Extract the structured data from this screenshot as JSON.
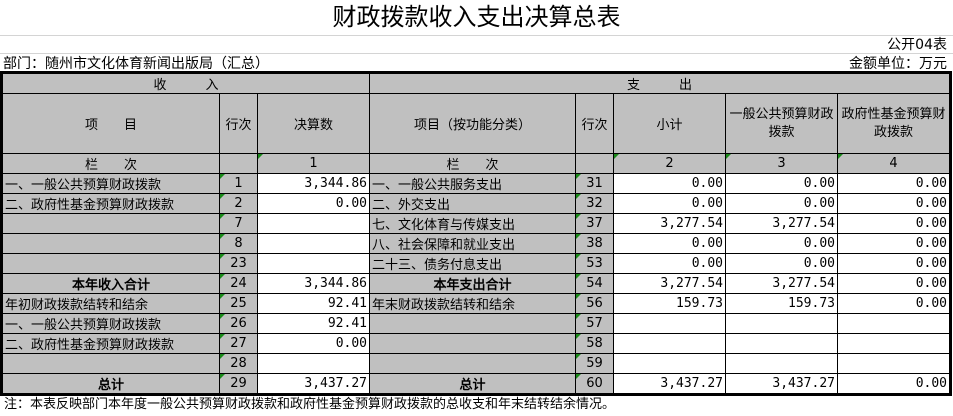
{
  "title": "财政拨款收入支出决算总表",
  "form_no": "公开04表",
  "department": "部门：随州市文化体育新闻出版局（汇总）",
  "unit": "金额单位：万元",
  "header": {
    "income": "收　　　入",
    "expense": "支　　　出",
    "item": "项　　目",
    "row_no": "行次",
    "final_amount": "决算数",
    "item_by_function": "项目（按功能分类）",
    "subtotal": "小计",
    "general_budget": "一般公共预算财政拨款",
    "gov_fund": "政府性基金预算财政拨款",
    "column_label": "栏　　次",
    "col1": "1",
    "col2": "2",
    "col3": "3",
    "col4": "4"
  },
  "rows": [
    {
      "in_item": "一、一般公共预算财政拨款",
      "in_no": "1",
      "in_amt": "3,344.86",
      "ex_item": "一、一般公共服务支出",
      "ex_no": "31",
      "sub": "0.00",
      "gen": "0.00",
      "fund": "0.00"
    },
    {
      "in_item": "二、政府性基金预算财政拨款",
      "in_no": "2",
      "in_amt": "0.00",
      "ex_item": "二、外交支出",
      "ex_no": "32",
      "sub": "0.00",
      "gen": "0.00",
      "fund": "0.00"
    },
    {
      "in_item": "",
      "in_no": "7",
      "in_amt": "",
      "ex_item": "七、文化体育与传媒支出",
      "ex_no": "37",
      "sub": "3,277.54",
      "gen": "3,277.54",
      "fund": "0.00"
    },
    {
      "in_item": "",
      "in_no": "8",
      "in_amt": "",
      "ex_item": "八、社会保障和就业支出",
      "ex_no": "38",
      "sub": "0.00",
      "gen": "0.00",
      "fund": "0.00"
    },
    {
      "in_item": "",
      "in_no": "23",
      "in_amt": "",
      "ex_item": "二十三、债务付息支出",
      "ex_no": "53",
      "sub": "0.00",
      "gen": "0.00",
      "fund": "0.00"
    },
    {
      "in_item": "本年收入合计",
      "in_no": "24",
      "in_amt": "3,344.86",
      "ex_item": "本年支出合计",
      "ex_no": "54",
      "sub": "3,277.54",
      "gen": "3,277.54",
      "fund": "0.00",
      "bold": true
    },
    {
      "in_item": "年初财政拨款结转和结余",
      "in_no": "25",
      "in_amt": "92.41",
      "ex_item": "年末财政拨款结转和结余",
      "ex_no": "56",
      "sub": "159.73",
      "gen": "159.73",
      "fund": "0.00"
    },
    {
      "in_item": "一、一般公共预算财政拨款",
      "in_no": "26",
      "in_amt": "92.41",
      "ex_item": "",
      "ex_no": "57",
      "sub": "",
      "gen": "",
      "fund": ""
    },
    {
      "in_item": "二、政府性基金预算财政拨款",
      "in_no": "27",
      "in_amt": "0.00",
      "ex_item": "",
      "ex_no": "58",
      "sub": "",
      "gen": "",
      "fund": ""
    },
    {
      "in_item": "",
      "in_no": "28",
      "in_amt": "",
      "ex_item": "",
      "ex_no": "59",
      "sub": "",
      "gen": "",
      "fund": ""
    },
    {
      "in_item": "总计",
      "in_no": "29",
      "in_amt": "3,437.27",
      "ex_item": "总计",
      "ex_no": "60",
      "sub": "3,437.27",
      "gen": "3,437.27",
      "fund": "0.00",
      "bold": true
    }
  ],
  "note": "注：本表反映部门本年度一般公共预算财政拨款和政府性基金预算财政拨款的总收支和年末结转结余情况。"
}
